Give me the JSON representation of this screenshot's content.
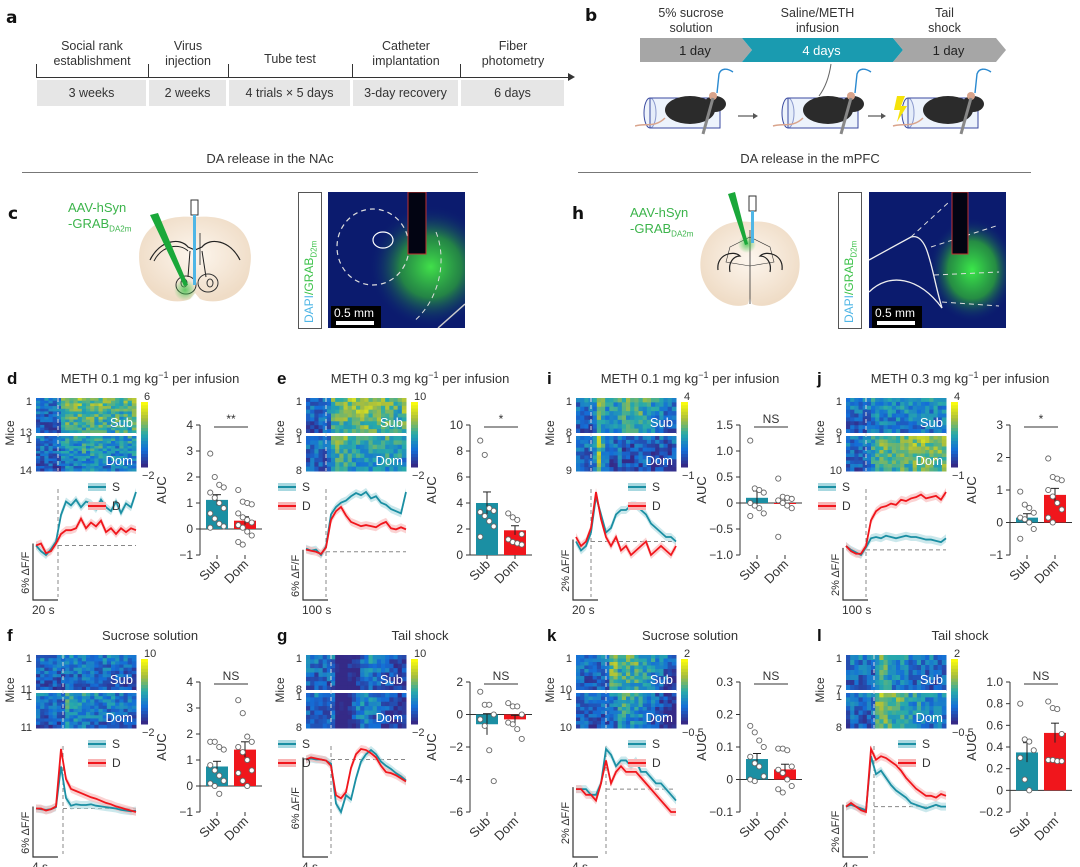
{
  "panel_a": {
    "label": "a",
    "stages": [
      {
        "head": [
          "Social rank",
          "establishment"
        ],
        "duration": "3 weeks"
      },
      {
        "head": [
          "Virus",
          "injection"
        ],
        "duration": "2 weeks"
      },
      {
        "head": [
          "Tube test"
        ],
        "duration": "4 trials × 5 days"
      },
      {
        "head": [
          "Catheter",
          "implantation"
        ],
        "duration": "3-day recovery"
      },
      {
        "head": [
          "Fiber",
          "photometry"
        ],
        "duration": "6 days"
      }
    ]
  },
  "panel_b": {
    "label": "b",
    "steps": [
      {
        "head": [
          "5% sucrose",
          "solution"
        ],
        "duration": "1 day",
        "color": "#a6a6a6"
      },
      {
        "head": [
          "Saline/METH",
          "infusion"
        ],
        "duration": "4 days",
        "color": "#1a9bb0"
      },
      {
        "head": [
          "Tail",
          "shock"
        ],
        "duration": "1 day",
        "color": "#a6a6a6"
      }
    ]
  },
  "sections": {
    "left": "DA release in the NAc",
    "right": "DA release in the mPFC"
  },
  "panel_c": {
    "label": "c",
    "virus_line1": "AAV-hSyn",
    "virus_line2": "-GRAB",
    "virus_sub": "DA2m",
    "stain_dapi": "DAPI",
    "stain_slash": "/",
    "stain_grab": "GRAB",
    "stain_sub": "D2m",
    "scale": "0.5 mm"
  },
  "panel_h": {
    "label": "h",
    "virus_line1": "AAV-hSyn",
    "virus_line2": "-GRAB",
    "virus_sub": "DA2m",
    "stain_dapi": "DAPI",
    "stain_slash": "/",
    "stain_grab": "GRAB",
    "stain_sub": "D2m",
    "scale": "0.5 mm"
  },
  "colors": {
    "sub": "#1b8fa3",
    "dom": "#f0161c",
    "sub_shade": "#a8d8e0",
    "dom_shade": "#f8b4b4"
  },
  "chart_data": [
    {
      "id": "d",
      "type": "heatmap+line+bar",
      "title": "METH 0.1 mg kg",
      "title_sup": "−1",
      "title_suffix": " per infusion",
      "heatmap": {
        "ylabel": "Mice",
        "groups": [
          {
            "name": "Sub",
            "start": "1",
            "end": "13"
          },
          {
            "name": "Dom",
            "start": "1",
            "end": "14"
          }
        ],
        "cbar": [
          "6",
          "−2"
        ]
      },
      "trace": {
        "legend": [
          "S",
          "D"
        ],
        "scale_y": "6% ΔF/F",
        "scale_x": "20 s",
        "sub": [
          0,
          -0.3,
          -0.5,
          -0.2,
          0.2,
          1.6,
          2.3,
          2.1,
          2.4,
          2.0,
          2.3,
          2.2,
          1.9,
          2.4,
          2.0,
          1.8,
          2.3,
          1.7,
          2.2,
          2.0,
          2.8
        ],
        "dom": [
          0,
          0.1,
          -0.4,
          -0.3,
          0.1,
          0.6,
          0.8,
          0.8,
          0.9,
          1.4,
          0.9,
          1.2,
          1.0,
          1.3,
          0.7,
          0.9,
          0.6,
          0.9,
          0.7,
          0.9,
          0.8
        ],
        "onset": 0.22
      },
      "bars": {
        "ylabel": "AUC",
        "ylim": [
          -1,
          4
        ],
        "ticks": [
          -1,
          0,
          1,
          2,
          3,
          4
        ],
        "categories": [
          "Sub",
          "Dom"
        ],
        "values": [
          1.12,
          0.32
        ],
        "sem": [
          0.2,
          0.15
        ],
        "sig": "**",
        "points": [
          [
            2.9,
            2.0,
            1.7,
            1.6,
            1.4,
            1.2,
            1.0,
            0.8,
            0.6,
            0.4,
            0.2,
            0.1,
            0.05
          ],
          [
            1.5,
            1.05,
            1.0,
            0.95,
            0.6,
            0.45,
            0.35,
            0.25,
            0.15,
            0.05,
            -0.1,
            -0.25,
            -0.5,
            -0.6
          ]
        ]
      }
    },
    {
      "id": "e",
      "type": "heatmap+line+bar",
      "title": "METH 0.3 mg kg",
      "title_sup": "−1",
      "title_suffix": " per infusion",
      "heatmap": {
        "ylabel": "Mice",
        "groups": [
          {
            "name": "Sub",
            "start": "1",
            "end": "9"
          },
          {
            "name": "Dom",
            "start": "1",
            "end": "8"
          }
        ],
        "cbar": [
          "10",
          "−2"
        ]
      },
      "trace": {
        "legend": [
          "S",
          "D"
        ],
        "scale_y": "6% ΔF/F",
        "scale_x": "100 s",
        "sub": [
          0.3,
          0.1,
          0.2,
          -0.3,
          0.5,
          3.5,
          4.2,
          4.6,
          4.8,
          5.2,
          5.5,
          5.3,
          5.6,
          5.0,
          5.2,
          4.6,
          4.4,
          4.0,
          3.8,
          3.6,
          5.6
        ],
        "dom": [
          0.2,
          0.1,
          0.0,
          -0.2,
          0.4,
          3.0,
          3.8,
          4.2,
          3.4,
          2.8,
          2.6,
          2.4,
          2.5,
          2.4,
          2.3,
          2.6,
          2.8,
          2.2,
          2.1,
          2.3,
          2.1
        ],
        "onset": 0.2
      },
      "bars": {
        "ylabel": "AUC",
        "ylim": [
          0,
          10
        ],
        "ticks": [
          0,
          2,
          4,
          6,
          8,
          10
        ],
        "categories": [
          "Sub",
          "Dom"
        ],
        "values": [
          4.0,
          1.9
        ],
        "sem": [
          0.85,
          0.35
        ],
        "sig": "*",
        "points": [
          [
            8.8,
            7.7,
            3.6,
            3.4,
            3.3,
            3.0,
            2.6,
            2.2,
            1.4
          ],
          [
            3.2,
            2.9,
            2.7,
            1.6,
            1.2,
            1.0,
            0.9,
            0.8
          ]
        ]
      }
    },
    {
      "id": "i",
      "type": "heatmap+line+bar",
      "title": "METH 0.1 mg kg",
      "title_sup": "−1",
      "title_suffix": " per infusion",
      "heatmap": {
        "ylabel": "Mice",
        "groups": [
          {
            "name": "Sub",
            "start": "1",
            "end": "8"
          },
          {
            "name": "Dom",
            "start": "1",
            "end": "9"
          }
        ],
        "cbar": [
          "4",
          "−1"
        ]
      },
      "trace": {
        "legend": [
          "S",
          "D"
        ],
        "scale_y": "2% ΔF/F",
        "scale_x": "20 s",
        "sub": [
          0,
          -0.2,
          -0.1,
          0.2,
          1.0,
          0.6,
          0.2,
          0.3,
          0.6,
          0.7,
          0.7,
          0.8,
          0.8,
          0.7,
          0.6,
          0.4,
          0.3,
          0.2,
          0.1,
          0.1,
          0.0
        ],
        "dom": [
          0.1,
          -0.1,
          0.0,
          0.3,
          1.1,
          0.5,
          0.1,
          -0.1,
          0.1,
          -0.2,
          -0.1,
          -0.3,
          -0.2,
          -0.1,
          0.0,
          -0.3,
          -0.2,
          -0.1,
          -0.2,
          -0.3,
          -0.1
        ],
        "onset": 0.15
      },
      "bars": {
        "ylabel": "AUC",
        "ylim": [
          -1.0,
          1.5
        ],
        "ticks": [
          -1.0,
          -0.5,
          0,
          0.5,
          1.0,
          1.5
        ],
        "ticklabels": [
          "−1.0",
          "−0.5",
          "0",
          "0.5",
          "1.0",
          "1.5"
        ],
        "categories": [
          "Sub",
          "Dom"
        ],
        "values": [
          0.1,
          0.0
        ],
        "sem": [
          0.13,
          0.08
        ],
        "sig": "NS",
        "points": [
          [
            1.2,
            0.28,
            0.25,
            0.2,
            0.0,
            -0.05,
            -0.1,
            -0.2,
            -0.25
          ],
          [
            0.47,
            0.12,
            0.1,
            0.08,
            0.05,
            0.0,
            -0.05,
            -0.1,
            -0.65
          ]
        ]
      }
    },
    {
      "id": "j",
      "type": "heatmap+line+bar",
      "title": "METH 0.3 mg kg",
      "title_sup": "−1",
      "title_suffix": " per infusion",
      "heatmap": {
        "ylabel": "Mice",
        "groups": [
          {
            "name": "Sub",
            "start": "1",
            "end": "9"
          },
          {
            "name": "Dom",
            "start": "1",
            "end": "10"
          }
        ],
        "cbar": [
          "4",
          "−1"
        ]
      },
      "trace": {
        "legend": [
          "S",
          "D"
        ],
        "scale_y": "2% ΔF/F",
        "scale_x": "100 s",
        "sub": [
          0.3,
          0.0,
          -0.2,
          -0.4,
          0.2,
          0.9,
          1.0,
          0.9,
          1.1,
          1.0,
          0.9,
          1.0,
          1.1,
          1.0,
          1.0,
          0.9,
          0.8,
          0.8,
          0.7,
          0.6,
          0.9
        ],
        "dom": [
          0.3,
          -0.1,
          -0.3,
          -0.3,
          0.3,
          2.3,
          3.0,
          3.3,
          3.4,
          3.6,
          3.5,
          3.9,
          3.8,
          4.0,
          4.1,
          4.3,
          4.0,
          4.1,
          4.2,
          3.9,
          4.5
        ],
        "onset": 0.2
      },
      "bars": {
        "ylabel": "AUC",
        "ylim": [
          -1,
          3
        ],
        "ticks": [
          -1,
          0,
          1,
          2,
          3
        ],
        "ticklabels": [
          "−1",
          "0",
          "1",
          "2",
          "3"
        ],
        "categories": [
          "Sub",
          "Dom"
        ],
        "values": [
          0.15,
          0.85
        ],
        "sem": [
          0.12,
          0.2
        ],
        "sig": "*",
        "points": [
          [
            0.95,
            0.55,
            0.45,
            0.3,
            0.15,
            0.1,
            0.0,
            -0.2,
            -0.5
          ],
          [
            1.97,
            1.4,
            1.35,
            1.3,
            1.0,
            0.8,
            0.6,
            0.4,
            0.15,
            0.0
          ]
        ]
      }
    },
    {
      "id": "f",
      "type": "heatmap+line+bar",
      "title": "Sucrose solution",
      "heatmap": {
        "ylabel": "Mice",
        "groups": [
          {
            "name": "Sub",
            "start": "1",
            "end": "11"
          },
          {
            "name": "Dom",
            "start": "1",
            "end": "11"
          }
        ],
        "cbar": [
          "10",
          "−2"
        ]
      },
      "trace": {
        "legend": [
          "S",
          "D"
        ],
        "scale_y": "6% ΔF/F",
        "scale_x": "4 s",
        "sub": [
          0,
          -0.1,
          -0.2,
          -0.1,
          0.2,
          6.0,
          1.5,
          0.4,
          0.6,
          0.5,
          0.5,
          0.6,
          0.4,
          0.3,
          0.2,
          0.1,
          0.0,
          -0.2,
          -0.3,
          -0.4,
          -0.3
        ],
        "dom": [
          0,
          0.0,
          -0.3,
          -0.1,
          0.3,
          8.5,
          4.2,
          2.8,
          2.5,
          2.2,
          1.9,
          1.6,
          1.4,
          1.1,
          0.8,
          0.6,
          0.3,
          0.1,
          -0.1,
          -0.3,
          -0.5
        ],
        "onset": 0.27
      },
      "bars": {
        "ylabel": "AUC",
        "ylim": [
          -1,
          4
        ],
        "ticks": [
          -1,
          0,
          1,
          2,
          3,
          4
        ],
        "ticklabels": [
          "−1",
          "0",
          "1",
          "2",
          "3",
          "4"
        ],
        "categories": [
          "Sub",
          "Dom"
        ],
        "values": [
          0.75,
          1.4
        ],
        "sem": [
          0.2,
          0.3
        ],
        "sig": "NS",
        "points": [
          [
            1.7,
            1.7,
            1.5,
            1.4,
            0.8,
            0.6,
            0.4,
            0.2,
            0.1,
            0.0,
            -0.3
          ],
          [
            3.3,
            2.8,
            1.9,
            1.7,
            1.5,
            1.3,
            1.0,
            0.6,
            0.5,
            0.2,
            0.0
          ]
        ]
      }
    },
    {
      "id": "g",
      "type": "heatmap+line+bar",
      "title": "Tail shock",
      "heatmap": {
        "ylabel": "Mice",
        "groups": [
          {
            "name": "Sub",
            "start": "1",
            "end": "8"
          },
          {
            "name": "Dom",
            "start": "1",
            "end": "8"
          }
        ],
        "cbar": [
          "10",
          "−2"
        ]
      },
      "trace": {
        "legend": [
          "S",
          "D"
        ],
        "scale_y": "6% ΔF/F",
        "scale_x": "4 s",
        "sub": [
          0,
          0.1,
          0.0,
          0.0,
          -0.1,
          -0.4,
          -4.2,
          -5.0,
          -3.4,
          -3.8,
          -1.8,
          -0.2,
          0.5,
          0.9,
          0.5,
          -0.2,
          -0.6,
          -0.9,
          -1.3,
          -1.6,
          -2.0
        ],
        "dom": [
          0,
          0.2,
          0.1,
          0.0,
          -0.1,
          -0.6,
          -3.4,
          -3.7,
          -3.1,
          -0.8,
          0.5,
          1.0,
          0.9,
          0.6,
          0.2,
          -0.6,
          -1.2,
          -1.3,
          -1.5,
          -1.8,
          -2.1
        ],
        "onset": 0.25
      },
      "bars": {
        "ylabel": "AUC",
        "ylim": [
          -6,
          2
        ],
        "ticks": [
          -6,
          -4,
          -2,
          0,
          2
        ],
        "ticklabels": [
          "−6",
          "−4",
          "−2",
          "0",
          "2"
        ],
        "categories": [
          "Sub",
          "Dom"
        ],
        "values": [
          -0.6,
          -0.3
        ],
        "sem": [
          0.65,
          0.25
        ],
        "sig": "NS",
        "points": [
          [
            1.4,
            0.6,
            0.6,
            0.0,
            -0.3,
            -0.7,
            -2.2,
            -4.1
          ],
          [
            0.7,
            0.5,
            0.5,
            0.0,
            -0.5,
            -0.6,
            -0.9,
            -1.5
          ]
        ]
      }
    },
    {
      "id": "k",
      "type": "heatmap+line+bar",
      "title": "Sucrose solution",
      "heatmap": {
        "ylabel": "Mice",
        "groups": [
          {
            "name": "Sub",
            "start": "1",
            "end": "10"
          },
          {
            "name": "Dom",
            "start": "1",
            "end": "10"
          }
        ],
        "cbar": [
          "2",
          "−0.5"
        ]
      },
      "trace": {
        "legend": [
          "S",
          "D"
        ],
        "scale_y": "2% ΔF/F",
        "scale_x": "4 s",
        "sub": [
          0,
          0.0,
          0.0,
          -0.1,
          -0.1,
          0.1,
          0.7,
          0.6,
          0.4,
          0.5,
          0.5,
          0.4,
          0.5,
          0.3,
          0.3,
          0.2,
          0.1,
          0.1,
          0.0,
          -0.1,
          -0.2
        ],
        "dom": [
          0,
          0.0,
          -0.1,
          -0.1,
          -0.2,
          0.1,
          0.5,
          0.1,
          0.3,
          0.4,
          0.3,
          0.3,
          0.3,
          0.2,
          0.1,
          0.0,
          -0.1,
          -0.2,
          -0.3,
          -0.4,
          -0.4
        ],
        "onset": 0.3
      },
      "bars": {
        "ylabel": "AUC",
        "ylim": [
          -0.1,
          0.3
        ],
        "ticks": [
          -0.1,
          0,
          0.1,
          0.2,
          0.3
        ],
        "ticklabels": [
          "−0.1",
          "0",
          "0.1",
          "0.2",
          "0.3"
        ],
        "categories": [
          "Sub",
          "Dom"
        ],
        "values": [
          0.063,
          0.031
        ],
        "sem": [
          0.017,
          0.016
        ],
        "sig": "NS",
        "points": [
          [
            0.165,
            0.145,
            0.12,
            0.1,
            0.07,
            0.05,
            0.04,
            0.01,
            0.0,
            -0.005
          ],
          [
            0.095,
            0.095,
            0.09,
            0.04,
            0.03,
            0.02,
            0.0,
            -0.02,
            -0.03,
            -0.04
          ]
        ]
      }
    },
    {
      "id": "l",
      "type": "heatmap+line+bar",
      "title": "Tail shock",
      "heatmap": {
        "ylabel": "Mice",
        "groups": [
          {
            "name": "Sub",
            "start": "1",
            "end": "7"
          },
          {
            "name": "Dom",
            "start": "1",
            "end": "8"
          }
        ],
        "cbar": [
          "2",
          "−0.5"
        ]
      },
      "trace": {
        "legend": [
          "S",
          "D"
        ],
        "scale_y": "2% ΔF/F",
        "scale_x": "4 s",
        "sub": [
          0,
          0.1,
          0.0,
          -0.1,
          -0.2,
          2.8,
          1.8,
          2.0,
          1.6,
          1.2,
          0.9,
          0.7,
          0.5,
          0.2,
          0.1,
          0.0,
          -0.1,
          0.0,
          0.1,
          0.0,
          0.0
        ],
        "dom": [
          0,
          0.2,
          0.0,
          -0.2,
          -0.3,
          3.2,
          2.6,
          2.8,
          2.7,
          2.5,
          2.3,
          2.0,
          1.6,
          1.3,
          1.0,
          0.8,
          0.6,
          0.6,
          0.5,
          0.7,
          0.6
        ],
        "onset": 0.28
      },
      "bars": {
        "ylabel": "AUC",
        "ylim": [
          -0.2,
          1.0
        ],
        "ticks": [
          -0.2,
          0,
          0.2,
          0.4,
          0.6,
          0.8,
          1.0
        ],
        "ticklabels": [
          "−0.2",
          "0",
          "0.2",
          "0.4",
          "0.6",
          "0.8",
          "1.0"
        ],
        "categories": [
          "Sub",
          "Dom"
        ],
        "values": [
          0.35,
          0.53
        ],
        "sem": [
          0.09,
          0.09
        ],
        "sig": "NS",
        "points": [
          [
            0.8,
            0.47,
            0.45,
            0.37,
            0.3,
            0.1,
            0.0
          ],
          [
            0.82,
            0.76,
            0.75,
            0.52,
            0.28,
            0.28,
            0.27,
            0.27
          ]
        ]
      }
    }
  ]
}
